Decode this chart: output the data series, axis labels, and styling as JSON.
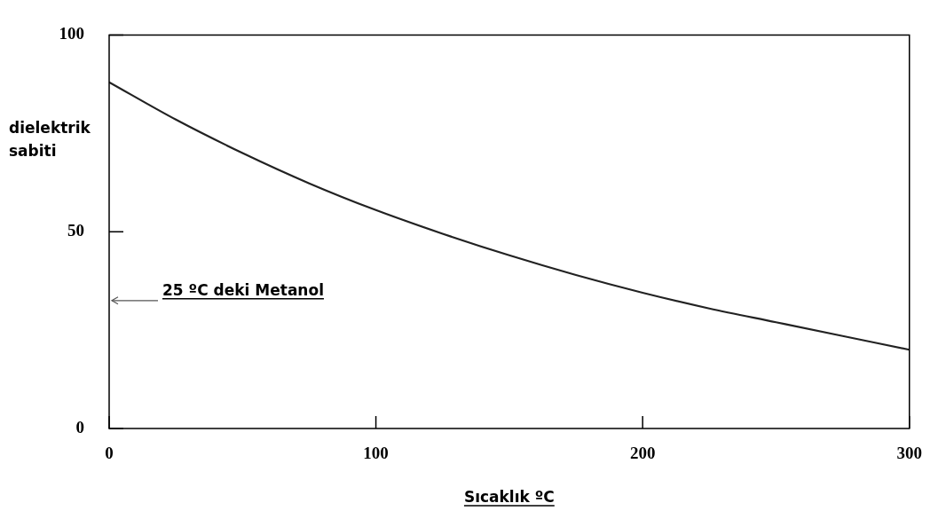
{
  "chart_data": {
    "type": "line",
    "xlabel": "Sıcaklık ºC",
    "ylabel": "dielektrik sabiti",
    "x": [
      0,
      25,
      50,
      75,
      100,
      125,
      150,
      175,
      200,
      225,
      250,
      275,
      300
    ],
    "series": [
      {
        "color": "#222222",
        "values": [
          88,
          78.5,
          70,
          62.3,
          55.5,
          49.5,
          44,
          39,
          34.5,
          30.5,
          27,
          23.5,
          20
        ]
      }
    ],
    "xlim": [
      0,
      300
    ],
    "xticks": [
      0,
      100,
      200,
      300
    ],
    "ylim": [
      0,
      100
    ],
    "yticks": [
      0,
      50,
      100
    ],
    "annotations": [
      "25 ºC deki Metanol"
    ],
    "grid": false,
    "legend": false,
    "marker": "none",
    "line_style": "solid"
  }
}
